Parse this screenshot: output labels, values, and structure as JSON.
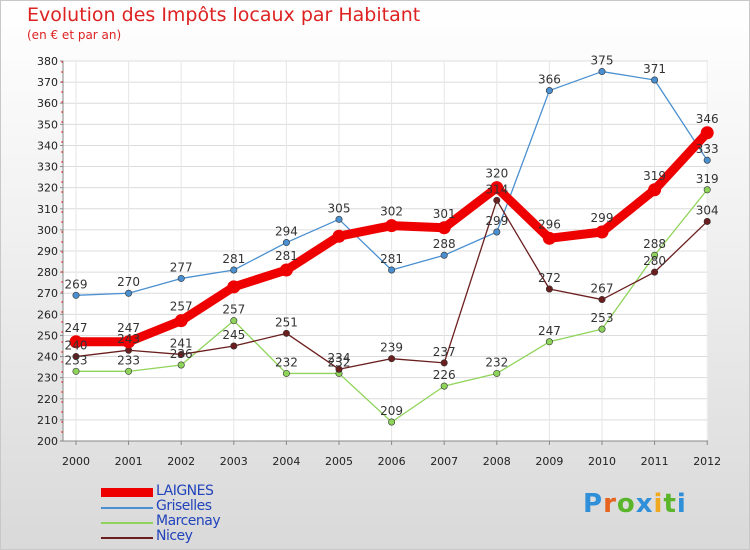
{
  "header": {
    "title": "Evolution des Impôts locaux par Habitant",
    "subtitle": "(en € et par an)"
  },
  "logo": {
    "text": "Proxiti",
    "letter_colors": [
      "#2f8fd8",
      "#e8641e",
      "#5ab52a",
      "#2f8fd8",
      "#f0a81e",
      "#5ab52a",
      "#2f8fd8"
    ]
  },
  "chart_data": {
    "type": "line",
    "x": [
      "2000",
      "2001",
      "2002",
      "2003",
      "2004",
      "2005",
      "2006",
      "2007",
      "2008",
      "2009",
      "2010",
      "2011",
      "2012"
    ],
    "ylim": [
      200,
      380
    ],
    "yticks": [
      "200",
      "210",
      "220",
      "230",
      "240",
      "250",
      "260",
      "270",
      "280",
      "290",
      "300",
      "310",
      "320",
      "330",
      "340",
      "350",
      "360",
      "370",
      "380"
    ],
    "grid": true,
    "legend_position": "bottom-left",
    "series": [
      {
        "name": "LAIGNES",
        "color": "#ee0000",
        "emphasis": true,
        "values": [
          247,
          247,
          257,
          273,
          281,
          297,
          302,
          301,
          320,
          296,
          299,
          319,
          346
        ],
        "labels": [
          "247",
          "247",
          "257",
          "",
          "281",
          "",
          "302",
          "301",
          "320",
          "296",
          "299",
          "319",
          "346"
        ]
      },
      {
        "name": "Griselles",
        "color": "#4a90d0",
        "emphasis": false,
        "values": [
          269,
          270,
          277,
          281,
          294,
          305,
          281,
          288,
          299,
          366,
          375,
          371,
          333
        ],
        "labels": [
          "269",
          "270",
          "277",
          "281",
          "294",
          "305",
          "281",
          "288",
          "299",
          "366",
          "375",
          "371",
          "333"
        ]
      },
      {
        "name": "Marcenay",
        "color": "#8fd45a",
        "emphasis": false,
        "values": [
          233,
          233,
          236,
          257,
          232,
          232,
          209,
          226,
          232,
          247,
          253,
          288,
          319
        ],
        "labels": [
          "233",
          "233",
          "236",
          "257",
          "232",
          "232",
          "209",
          "226",
          "232",
          "247",
          "253",
          "288",
          "319"
        ]
      },
      {
        "name": "Nicey",
        "color": "#6b1e1e",
        "emphasis": false,
        "values": [
          240,
          243,
          241,
          245,
          251,
          234,
          239,
          237,
          314,
          272,
          267,
          280,
          304
        ],
        "labels": [
          "240",
          "243",
          "241",
          "245",
          "251",
          "234",
          "239",
          "237",
          "314",
          "272",
          "267",
          "280",
          "304"
        ]
      }
    ]
  }
}
